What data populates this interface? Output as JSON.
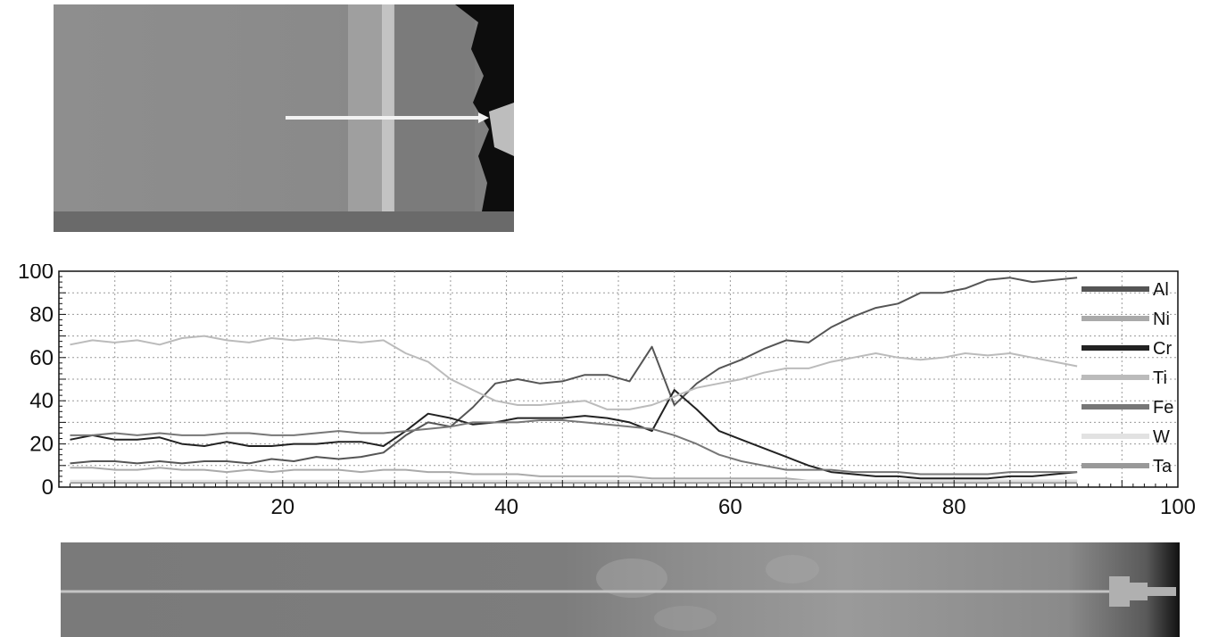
{
  "chart_data": {
    "type": "line",
    "xlim": [
      0,
      100
    ],
    "ylim": [
      0,
      100
    ],
    "x_ticks": [
      20,
      40,
      60,
      80,
      100
    ],
    "y_ticks": [
      0,
      20,
      40,
      60,
      80,
      100
    ],
    "grid": true,
    "legend_placement": "right",
    "x": [
      1,
      3,
      5,
      7,
      9,
      11,
      13,
      15,
      17,
      19,
      21,
      23,
      25,
      27,
      29,
      31,
      33,
      35,
      37,
      39,
      41,
      43,
      45,
      47,
      49,
      51,
      53,
      55,
      57,
      59,
      61,
      63,
      65,
      67,
      69,
      71,
      73,
      75,
      77,
      79,
      81,
      83,
      85,
      87,
      89,
      91
    ],
    "series": [
      {
        "name": "Al",
        "color": "#555555",
        "values": [
          11,
          12,
          12,
          11,
          12,
          11,
          12,
          12,
          11,
          13,
          12,
          14,
          13,
          14,
          16,
          24,
          30,
          28,
          37,
          48,
          50,
          48,
          49,
          52,
          52,
          49,
          65,
          38,
          48,
          55,
          59,
          64,
          68,
          67,
          74,
          79,
          83,
          85,
          90,
          90,
          92,
          96,
          97,
          95,
          96,
          97
        ]
      },
      {
        "name": "Ni",
        "color": "#aaaaaa",
        "values": [
          9,
          9,
          8,
          8,
          9,
          8,
          8,
          7,
          8,
          7,
          8,
          8,
          8,
          7,
          8,
          8,
          7,
          7,
          6,
          6,
          6,
          5,
          5,
          5,
          5,
          5,
          4,
          4,
          4,
          4,
          4,
          4,
          4,
          3,
          3,
          3,
          3,
          3,
          3,
          3,
          3,
          3,
          3,
          3,
          3,
          3
        ]
      },
      {
        "name": "Cr",
        "color": "#222222",
        "values": [
          22,
          24,
          22,
          22,
          23,
          20,
          19,
          21,
          19,
          19,
          20,
          20,
          21,
          21,
          19,
          26,
          34,
          32,
          29,
          30,
          32,
          32,
          32,
          33,
          32,
          30,
          26,
          45,
          36,
          26,
          22,
          18,
          14,
          10,
          7,
          6,
          5,
          5,
          4,
          4,
          4,
          4,
          5,
          5,
          6,
          7
        ]
      },
      {
        "name": "Ti",
        "color": "#bbbbbb",
        "values": [
          66,
          68,
          67,
          68,
          66,
          69,
          70,
          68,
          67,
          69,
          68,
          69,
          68,
          67,
          68,
          62,
          58,
          50,
          45,
          40,
          38,
          38,
          39,
          40,
          36,
          36,
          38,
          42,
          46,
          48,
          50,
          53,
          55,
          55,
          58,
          60,
          62,
          60,
          59,
          60,
          62,
          61,
          62,
          60,
          58,
          56
        ]
      },
      {
        "name": "Fe",
        "color": "#777777",
        "values": [
          24,
          24,
          25,
          24,
          25,
          24,
          24,
          25,
          25,
          24,
          24,
          25,
          26,
          25,
          25,
          26,
          27,
          28,
          30,
          30,
          30,
          31,
          31,
          30,
          29,
          28,
          27,
          24,
          20,
          15,
          12,
          10,
          8,
          8,
          8,
          7,
          7,
          7,
          6,
          6,
          6,
          6,
          7,
          7,
          7,
          7
        ]
      },
      {
        "name": "W",
        "color": "#e2e2e2",
        "values": [
          3,
          3,
          3,
          3,
          3,
          3,
          3,
          3,
          3,
          3,
          3,
          3,
          3,
          3,
          3,
          3,
          3,
          3,
          3,
          3,
          3,
          3,
          3,
          3,
          3,
          3,
          3,
          3,
          3,
          3,
          3,
          3,
          3,
          3,
          3,
          3,
          3,
          3,
          3,
          3,
          3,
          3,
          3,
          3,
          3,
          3
        ]
      },
      {
        "name": "Ta",
        "color": "#999999",
        "values": [
          2,
          2,
          2,
          2,
          2,
          2,
          2,
          2,
          2,
          2,
          2,
          2,
          2,
          2,
          2,
          2,
          2,
          2,
          2,
          2,
          2,
          2,
          2,
          2,
          2,
          2,
          2,
          2,
          2,
          2,
          2,
          2,
          2,
          2,
          2,
          2,
          2,
          2,
          2,
          2,
          2,
          2,
          2,
          2,
          2,
          2
        ]
      }
    ]
  }
}
